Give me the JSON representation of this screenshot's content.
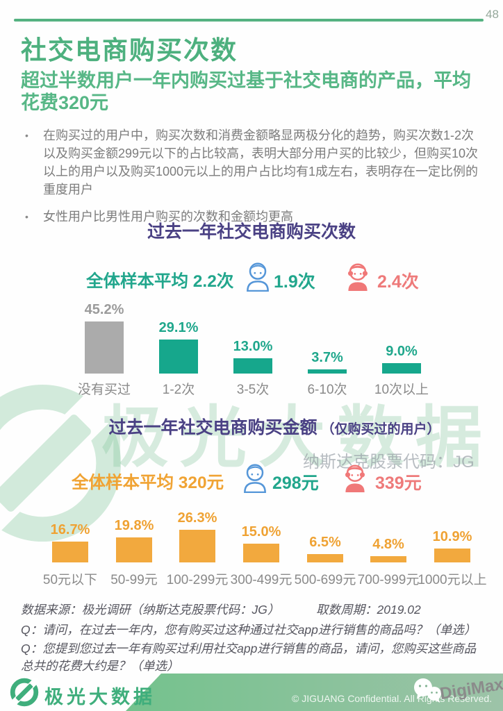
{
  "page": {
    "number": "48"
  },
  "header": {
    "title": "社交电商购买次数",
    "subtitle": "超过半数用户一年内购买过基于社交电商的产品，平均花费320元"
  },
  "bullets": [
    "在购买过的用户中，购买次数和消费金额略显两极分化的趋势，购买次数1-2次以及购买金额299元以下的占比较高，表明大部分用户买的比较少，但购买10次以上的用户以及购买1000元以上的用户占比均有1成左右，表明存在一定比例的重度用户",
    "女性用户比男性用户购买的次数和金额均更高"
  ],
  "watermark": {
    "big_text": "极光大数据",
    "nasdaq": "纳斯达克股票代码：JG"
  },
  "chart_data": [
    {
      "type": "bar",
      "title": "过去一年社交电商购买次数",
      "categories": [
        "没有买过",
        "1-2次",
        "3-5次",
        "6-10次",
        "10次以上"
      ],
      "values": [
        45.2,
        29.1,
        13.0,
        3.7,
        9.0
      ],
      "values_display": [
        "45.2%",
        "29.1%",
        "13.0%",
        "3.7%",
        "9.0%"
      ],
      "bar_colors": [
        "#ABABAB",
        "#16A78C",
        "#16A78C",
        "#16A78C",
        "#16A78C"
      ],
      "label_colors": [
        "#9B9B9B",
        "#1FA78C",
        "#1FA78C",
        "#1FA78C",
        "#1FA78C"
      ],
      "average_all": "全体样本平均 2.2次",
      "male": "1.9次",
      "female": "2.4次",
      "ylabel": "",
      "xlabel": "",
      "ylim": [
        0,
        50
      ],
      "grid": false,
      "legend": false
    },
    {
      "type": "bar",
      "title": "过去一年社交电商购买金额",
      "subtitle": "（仅购买过的用户）",
      "categories": [
        "50元以下",
        "50-99元",
        "100-299元",
        "300-499元",
        "500-699元",
        "700-999元",
        "1000元以上"
      ],
      "values": [
        16.7,
        19.8,
        26.3,
        15.0,
        6.5,
        4.8,
        10.9
      ],
      "values_display": [
        "16.7%",
        "19.8%",
        "26.3%",
        "15.0%",
        "6.5%",
        "4.8%",
        "10.9%"
      ],
      "bar_colors": [
        "#F2A93E",
        "#F2A93E",
        "#F2A93E",
        "#F2A93E",
        "#F2A93E",
        "#F2A93E",
        "#F2A93E"
      ],
      "label_colors": [
        "#EFA233",
        "#EFA233",
        "#EFA233",
        "#EFA233",
        "#EFA233",
        "#EFA233",
        "#EFA233"
      ],
      "average_all": "全体样本平均 320元",
      "male": "298元",
      "female": "339元",
      "ylabel": "",
      "xlabel": "",
      "ylim": [
        0,
        30
      ],
      "grid": false,
      "legend": false
    }
  ],
  "source": {
    "line1a": "数据来源：极光调研（纳斯达克股票代码：JG）",
    "line1b": "取数周期：2019.02",
    "q1": "Q：请问，在过去一年内，您有购买过这种通过社交app进行销售的商品吗？（单选）",
    "q2": "Q：您提到您过去一年有购买过利用社交app进行销售的商品，请问，您购买这些商品总共的花费大约是？（单选）"
  },
  "footer": {
    "brand": "极光大数据",
    "copyright": "© JIGUANG Confidential. All Rights Reserved.",
    "overlay_watermark": "DigiMax"
  },
  "colors": {
    "brand_green": "#4DB07E",
    "teal": "#16A78C",
    "orange": "#F2A93E",
    "chart_title_indigo": "#4A4184",
    "male_blue": "#5596D8",
    "female_pink": "#F07878"
  }
}
